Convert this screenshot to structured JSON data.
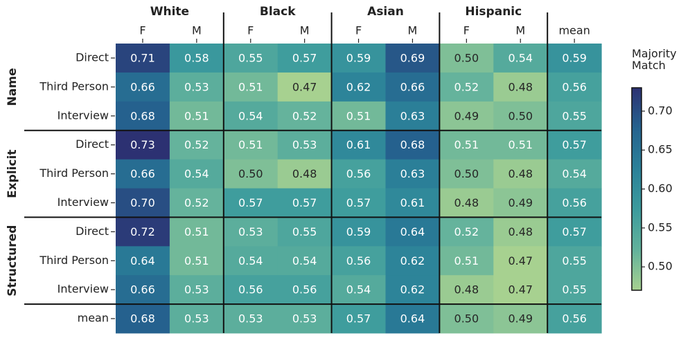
{
  "chart_data": {
    "type": "heatmap",
    "x_groups": [
      {
        "label": "White",
        "categories": [
          "F",
          "M"
        ]
      },
      {
        "label": "Black",
        "categories": [
          "F",
          "M"
        ]
      },
      {
        "label": "Asian",
        "categories": [
          "F",
          "M"
        ]
      },
      {
        "label": "Hispanic",
        "categories": [
          "F",
          "M"
        ]
      },
      {
        "label": null,
        "categories": [
          "mean"
        ]
      }
    ],
    "y_groups": [
      {
        "label": "Name",
        "categories": [
          "Direct",
          "Third Person",
          "Interview"
        ]
      },
      {
        "label": "Explicit",
        "categories": [
          "Direct",
          "Third Person",
          "Interview"
        ]
      },
      {
        "label": "Structured",
        "categories": [
          "Direct",
          "Third Person",
          "Interview"
        ]
      },
      {
        "label": null,
        "categories": [
          "mean"
        ]
      }
    ],
    "values": [
      [
        0.71,
        0.58,
        0.55,
        0.57,
        0.59,
        0.69,
        0.5,
        0.54,
        0.59
      ],
      [
        0.66,
        0.53,
        0.51,
        0.47,
        0.62,
        0.66,
        0.52,
        0.48,
        0.56
      ],
      [
        0.68,
        0.51,
        0.54,
        0.52,
        0.51,
        0.63,
        0.49,
        0.5,
        0.55
      ],
      [
        0.73,
        0.52,
        0.51,
        0.53,
        0.61,
        0.68,
        0.51,
        0.51,
        0.57
      ],
      [
        0.66,
        0.54,
        0.5,
        0.48,
        0.56,
        0.63,
        0.5,
        0.48,
        0.54
      ],
      [
        0.7,
        0.52,
        0.57,
        0.57,
        0.57,
        0.61,
        0.48,
        0.49,
        0.56
      ],
      [
        0.72,
        0.51,
        0.53,
        0.55,
        0.59,
        0.64,
        0.52,
        0.48,
        0.57
      ],
      [
        0.64,
        0.51,
        0.54,
        0.54,
        0.56,
        0.62,
        0.51,
        0.47,
        0.55
      ],
      [
        0.66,
        0.53,
        0.56,
        0.56,
        0.54,
        0.62,
        0.48,
        0.47,
        0.55
      ],
      [
        0.68,
        0.53,
        0.53,
        0.53,
        0.57,
        0.64,
        0.5,
        0.49,
        0.56
      ]
    ],
    "value_labels": [
      [
        "0.71",
        "0.58",
        "0.55",
        "0.57",
        "0.59",
        "0.69",
        "0.50",
        "0.54",
        "0.59"
      ],
      [
        "0.66",
        "0.53",
        "0.51",
        "0.47",
        "0.62",
        "0.66",
        "0.52",
        "0.48",
        "0.56"
      ],
      [
        "0.68",
        "0.51",
        "0.54",
        "0.52",
        "0.51",
        "0.63",
        "0.49",
        "0.50",
        "0.55"
      ],
      [
        "0.73",
        "0.52",
        "0.51",
        "0.53",
        "0.61",
        "0.68",
        "0.51",
        "0.51",
        "0.57"
      ],
      [
        "0.66",
        "0.54",
        "0.50",
        "0.48",
        "0.56",
        "0.63",
        "0.50",
        "0.48",
        "0.54"
      ],
      [
        "0.70",
        "0.52",
        "0.57",
        "0.57",
        "0.57",
        "0.61",
        "0.48",
        "0.49",
        "0.56"
      ],
      [
        "0.72",
        "0.51",
        "0.53",
        "0.55",
        "0.59",
        "0.64",
        "0.52",
        "0.48",
        "0.57"
      ],
      [
        "0.64",
        "0.51",
        "0.54",
        "0.54",
        "0.56",
        "0.62",
        "0.51",
        "0.47",
        "0.55"
      ],
      [
        "0.66",
        "0.53",
        "0.56",
        "0.56",
        "0.54",
        "0.62",
        "0.48",
        "0.47",
        "0.55"
      ],
      [
        "0.68",
        "0.53",
        "0.53",
        "0.53",
        "0.57",
        "0.64",
        "0.50",
        "0.49",
        "0.56"
      ]
    ],
    "colorbar_label": "Majority Match",
    "vlim": [
      0.47,
      0.73
    ],
    "colorbar_ticks": [
      {
        "value": 0.5,
        "label": "0.50"
      },
      0.55,
      {
        "value": 0.6,
        "label": "0.60"
      },
      0.65,
      {
        "value": 0.7,
        "label": "0.70"
      }
    ],
    "colormap": [
      "#a7d190",
      "#62b29c",
      "#3c9b9d",
      "#2b8199",
      "#25638f",
      "#2c3172"
    ]
  }
}
